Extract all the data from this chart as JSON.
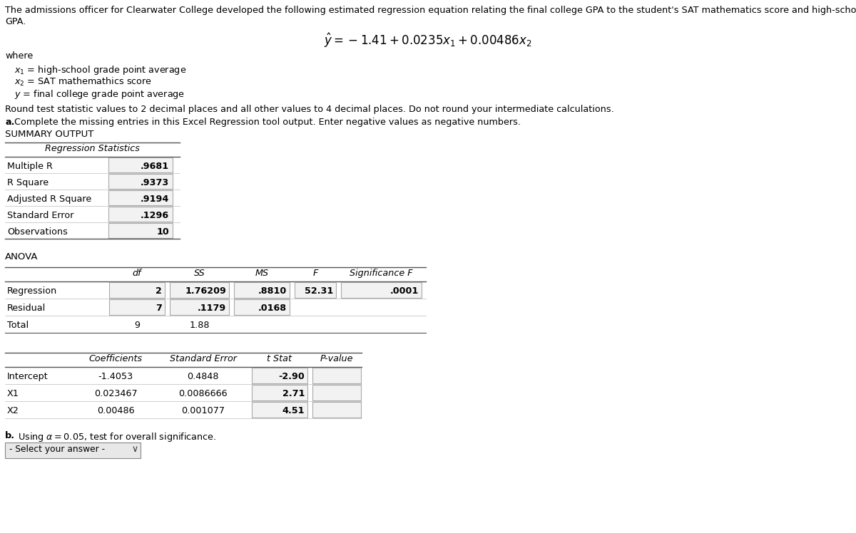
{
  "title_line1": "The admissions officer for Clearwater College developed the following estimated regression equation relating the final college GPA to the student's SAT mathematics score and high-school",
  "title_line2": "GPA.",
  "equation": "$\\hat{y} = -1.41 + 0.0235x_1 + 0.00486x_2$",
  "where_label": "where",
  "var1": "$x_1$ = high-school grade point average",
  "var2": "$x_2$ = SAT mathemathics score",
  "var3": "$y$ = final college grade point average",
  "round_note": "Round test statistic values to 2 decimal places and all other values to 4 decimal places. Do not round your intermediate calculations.",
  "part_a_bold": "a.",
  "part_a_rest": " Complete the missing entries in this Excel Regression tool output. Enter negative values as negative numbers.",
  "summary_output": "SUMMARY OUTPUT",
  "reg_stats_header": "Regression Statistics",
  "reg_stats_labels": [
    "Multiple R",
    "R Square",
    "Adjusted R Square",
    "Standard Error",
    "Observations"
  ],
  "reg_stats_values": [
    ".9681",
    ".9373",
    ".9194",
    ".1296",
    "10"
  ],
  "anova_label": "ANOVA",
  "anova_rows": [
    [
      "Regression",
      "2",
      "1.76209",
      ".8810",
      "52.31",
      ".0001"
    ],
    [
      "Residual",
      "7",
      ".1179",
      ".0168",
      "",
      ""
    ],
    [
      "Total",
      "9",
      "1.88",
      "",
      "",
      ""
    ]
  ],
  "coef_rows": [
    [
      "Intercept",
      "-1.4053",
      "0.4848",
      "-2.90",
      ""
    ],
    [
      "X1",
      "0.023467",
      "0.0086666",
      "2.71",
      ""
    ],
    [
      "X2",
      "0.00486",
      "0.001077",
      "4.51",
      ""
    ]
  ],
  "part_b_bold": "b.",
  "part_b_rest": " Using $\\alpha = 0.05$, test for overall significance.",
  "dropdown_text": "- Select your answer -",
  "bg_color": "#ffffff"
}
